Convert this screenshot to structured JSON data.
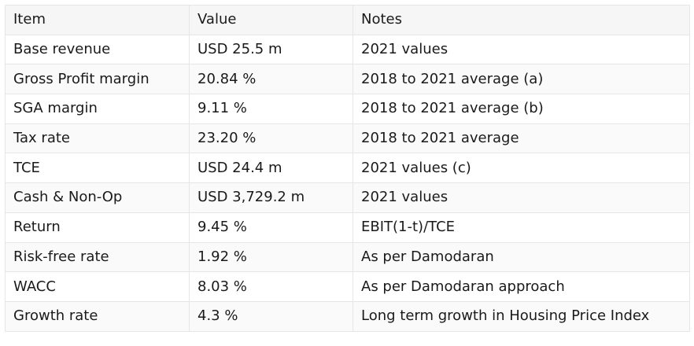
{
  "table": {
    "headers": [
      "Item",
      "Value",
      "Notes"
    ],
    "rows": [
      [
        "Base revenue",
        "USD 25.5 m",
        "2021 values"
      ],
      [
        "Gross Profit margin",
        "20.84 %",
        "2018 to 2021 average (a)"
      ],
      [
        "SGA margin",
        "9.11 %",
        "2018 to 2021 average (b)"
      ],
      [
        "Tax rate",
        "23.20 %",
        "2018 to 2021 average"
      ],
      [
        "TCE",
        "USD 24.4 m",
        "2021 values (c)"
      ],
      [
        "Cash & Non-Op",
        "USD 3,729.2 m",
        "2021 values"
      ],
      [
        "Return",
        "9.45 %",
        "EBIT(1-t)/TCE"
      ],
      [
        "Risk-free rate",
        "1.92 %",
        "As per Damodaran"
      ],
      [
        "WACC",
        "8.03 %",
        "As per Damodaran approach"
      ],
      [
        "Growth rate",
        "4.3 %",
        "Long term growth in Housing Price Index"
      ]
    ]
  }
}
